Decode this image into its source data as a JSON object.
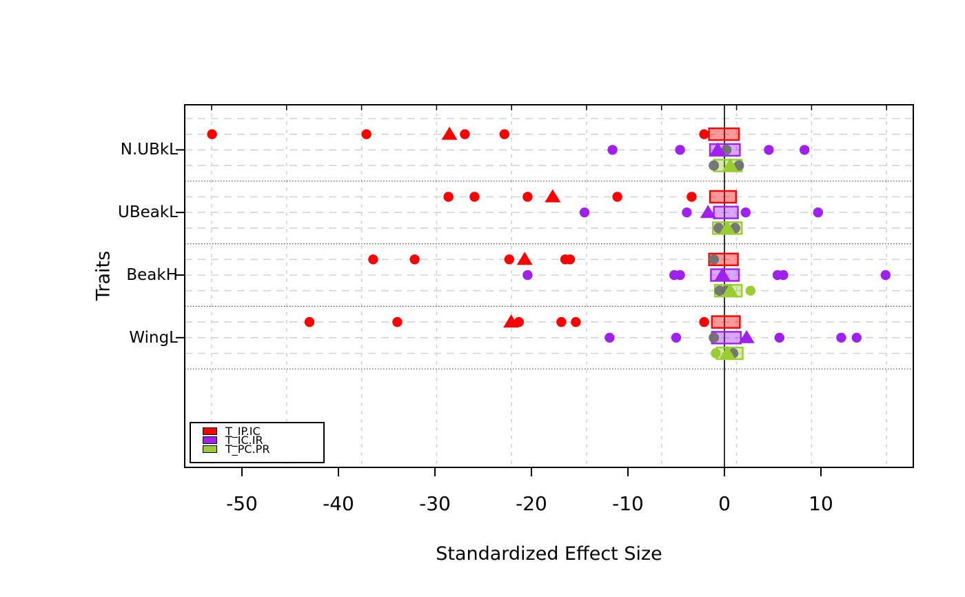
{
  "figure": {
    "bg": "#FFFFFF"
  },
  "axes": {
    "x_title": "Standardized Effect Size",
    "y_title": "Traits",
    "traits": [
      "N.UBkL",
      "UBeakL",
      "BeakH",
      "WingL"
    ],
    "x_ticks": [
      {
        "label": "-50",
        "value": -50
      },
      {
        "label": "-40",
        "value": -40
      },
      {
        "label": "-30",
        "value": -30
      },
      {
        "label": "-20",
        "value": -20
      },
      {
        "label": "-10",
        "value": -10
      },
      {
        "label": "0",
        "value": 0
      },
      {
        "label": "10",
        "value": 10
      }
    ]
  },
  "legend": {
    "items": [
      {
        "label": "T_IP.IC",
        "color": "#FF0000"
      },
      {
        "label": "T_IC.IR",
        "color": "#A020F0"
      },
      {
        "label": "T_PC.PR",
        "color": "#9ACD32"
      }
    ]
  },
  "colors": {
    "red": "#FF0000",
    "purple": "#A020F0",
    "green": "#9ACD32",
    "gray": "#6E6E6E",
    "grid": "#D3D3D3",
    "separator": "#444444",
    "axis": "#000000"
  },
  "chart_data": {
    "type": "scatter",
    "title": "",
    "xlabel": "Standardized Effect Size",
    "ylabel": "Traits",
    "xlim": [
      -56,
      19.5
    ],
    "x_tick_values": [
      -50,
      -40,
      -30,
      -20,
      -10,
      0,
      10
    ],
    "legend_entries": [
      "T_IP.IC",
      "T_IC.IR",
      "T_PC.PR"
    ],
    "grid": "dashed-gray, group separators dotted, solid vertical line at 0",
    "groups": [
      {
        "trait": "N.UBkL",
        "rows": [
          {
            "series": "T_IP.IC",
            "color_key": "red",
            "box": [
              -1.6,
              1.5
            ],
            "dots": [
              -53.1,
              -37.1,
              -26.9,
              -22.8,
              -2.1
            ],
            "triangle": -28.5,
            "gray_dots": []
          },
          {
            "series": "T_IC.IR",
            "color_key": "purple",
            "box": [
              -1.5,
              1.6
            ],
            "dots": [
              -11.6,
              -4.6,
              4.6,
              8.3
            ],
            "triangle": -0.7,
            "gray_dots": [
              0.2
            ]
          },
          {
            "series": "T_PC.PR",
            "color_key": "green",
            "box": [
              -1.1,
              1.8
            ],
            "dots": [],
            "triangle": 0.6,
            "gray_dots": [
              -1.1,
              1.5
            ]
          }
        ]
      },
      {
        "trait": "UBeakL",
        "rows": [
          {
            "series": "T_IP.IC",
            "color_key": "red",
            "box": [
              -1.5,
              1.2
            ],
            "dots": [
              -28.6,
              -25.9,
              -20.4,
              -11.1,
              -3.4
            ],
            "triangle": -17.8,
            "gray_dots": []
          },
          {
            "series": "T_IC.IR",
            "color_key": "purple",
            "box": [
              -1.1,
              1.4
            ],
            "dots": [
              -14.5,
              -3.9,
              2.2,
              9.7
            ],
            "triangle": -1.7,
            "gray_dots": []
          },
          {
            "series": "T_PC.PR",
            "color_key": "green",
            "box": [
              -1.2,
              1.8
            ],
            "dots": [],
            "triangle": 0.3,
            "gray_dots": [
              -0.6,
              1.1
            ]
          }
        ]
      },
      {
        "trait": "BeakH",
        "rows": [
          {
            "series": "T_IP.IC",
            "color_key": "red",
            "box": [
              -1.6,
              1.4
            ],
            "dots": [
              -36.4,
              -32.1,
              -22.3,
              -16.5,
              -16.0
            ],
            "triangle": -20.7,
            "gray_dots": [
              -1.1
            ]
          },
          {
            "series": "T_IC.IR",
            "color_key": "purple",
            "box": [
              -1.4,
              1.5
            ],
            "dots": [
              -20.4,
              -5.2,
              -4.6,
              5.5,
              6.1,
              16.7
            ],
            "triangle": -0.2,
            "gray_dots": []
          },
          {
            "series": "T_PC.PR",
            "color_key": "green",
            "box": [
              -1.0,
              1.8
            ],
            "dots": [
              2.7
            ],
            "triangle": 0.6,
            "gray_dots": [
              -0.5,
              0.2
            ]
          }
        ]
      },
      {
        "trait": "WingL",
        "rows": [
          {
            "series": "T_IP.IC",
            "color_key": "red",
            "box": [
              -1.3,
              1.6
            ],
            "dots": [
              -43.0,
              -33.9,
              -21.3,
              -16.9,
              -15.4,
              -2.1
            ],
            "triangle": -22.1,
            "gray_dots": []
          },
          {
            "series": "T_IC.IR",
            "color_key": "purple",
            "box": [
              -1.3,
              1.7
            ],
            "dots": [
              -11.9,
              -5.0,
              5.7,
              12.1,
              13.7
            ],
            "triangle": 2.3,
            "gray_dots": [
              -1.1
            ]
          },
          {
            "series": "T_PC.PR",
            "color_key": "green",
            "box": [
              -0.8,
              1.9
            ],
            "dots": [
              -0.9
            ],
            "triangle": 0.3,
            "gray_dots": [
              0.9
            ]
          }
        ]
      }
    ]
  }
}
